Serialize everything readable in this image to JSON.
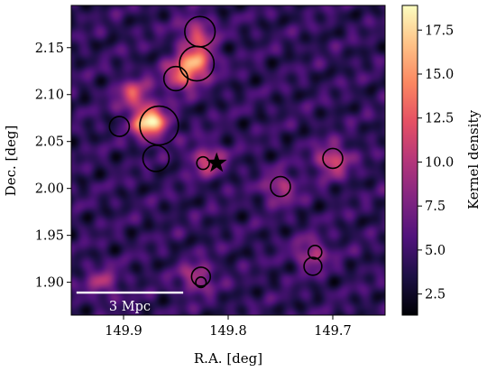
{
  "chart_data": {
    "type": "heatmap",
    "title": "",
    "xlabel": "R.A.  [deg]",
    "ylabel": "Dec.  [deg]",
    "xlim": [
      149.95,
      149.65
    ],
    "ylim": [
      1.865,
      2.195
    ],
    "x_ticks": [
      149.9,
      149.8,
      149.7
    ],
    "x_tick_labels": [
      "149.9",
      "149.8",
      "149.7"
    ],
    "y_ticks": [
      1.9,
      1.95,
      2.0,
      2.05,
      2.1,
      2.15
    ],
    "y_tick_labels": [
      "1.90",
      "1.95",
      "2.00",
      "2.05",
      "2.10",
      "2.15"
    ],
    "colorbar": {
      "label": "Kernel density",
      "range": [
        1.3,
        18.9
      ],
      "ticks": [
        2.5,
        5.0,
        7.5,
        10.0,
        12.5,
        15.0,
        17.5
      ],
      "tick_labels": [
        "2.5",
        "5.0",
        "7.5",
        "10.0",
        "12.5",
        "15.0",
        "17.5"
      ],
      "colormap": "magma"
    },
    "overdensities": [
      {
        "ra": 149.875,
        "dec": 2.07,
        "density": 18.5
      },
      {
        "ra": 149.83,
        "dec": 2.135,
        "density": 14.0
      },
      {
        "ra": 149.845,
        "dec": 2.12,
        "density": 12.5
      },
      {
        "ra": 149.89,
        "dec": 2.1,
        "density": 11.5
      },
      {
        "ra": 149.7,
        "dec": 2.03,
        "density": 12.0
      },
      {
        "ra": 149.83,
        "dec": 2.165,
        "density": 11.0
      },
      {
        "ra": 149.92,
        "dec": 1.9,
        "density": 9.0
      },
      {
        "ra": 149.72,
        "dec": 1.93,
        "density": 10.0
      },
      {
        "ra": 149.82,
        "dec": 2.03,
        "density": 11.0
      },
      {
        "ra": 149.75,
        "dec": 2.0,
        "density": 10.0
      },
      {
        "ra": 149.83,
        "dec": 1.905,
        "density": 10.0
      }
    ],
    "circles": [
      {
        "ra": 149.827,
        "dec": 2.167,
        "r_deg": 0.0145
      },
      {
        "ra": 149.83,
        "dec": 2.133,
        "r_deg": 0.0165
      },
      {
        "ra": 149.85,
        "dec": 2.117,
        "r_deg": 0.0115
      },
      {
        "ra": 149.904,
        "dec": 2.066,
        "r_deg": 0.0095
      },
      {
        "ra": 149.866,
        "dec": 2.067,
        "r_deg": 0.0185
      },
      {
        "ra": 149.869,
        "dec": 2.032,
        "r_deg": 0.0125
      },
      {
        "ra": 149.824,
        "dec": 2.027,
        "r_deg": 0.006
      },
      {
        "ra": 149.7,
        "dec": 2.032,
        "r_deg": 0.0095
      },
      {
        "ra": 149.75,
        "dec": 2.002,
        "r_deg": 0.0095
      },
      {
        "ra": 149.717,
        "dec": 1.932,
        "r_deg": 0.0065
      },
      {
        "ra": 149.719,
        "dec": 1.917,
        "r_deg": 0.0085
      },
      {
        "ra": 149.826,
        "dec": 1.906,
        "r_deg": 0.009
      },
      {
        "ra": 149.826,
        "dec": 1.9,
        "r_deg": 0.005
      }
    ],
    "star_marker": {
      "ra": 149.811,
      "dec": 2.027
    },
    "scale_bar": {
      "label": "3 Mpc",
      "ra_start": 149.945,
      "ra_end": 149.843,
      "dec": 1.889
    }
  }
}
